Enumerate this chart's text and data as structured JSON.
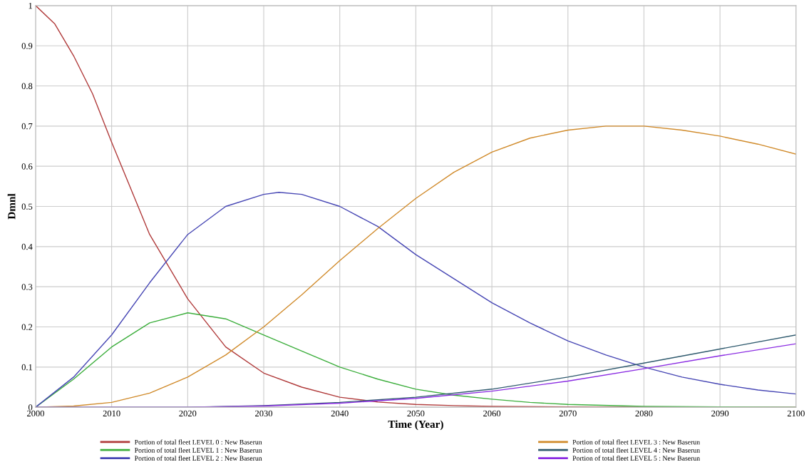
{
  "chart_data": {
    "type": "line",
    "xlabel": "Time (Year)",
    "ylabel": "Dmnl",
    "xlim": [
      2000,
      2100
    ],
    "xticks": [
      2000,
      2010,
      2020,
      2030,
      2040,
      2050,
      2060,
      2070,
      2080,
      2090,
      2100
    ],
    "ylim": [
      0,
      1
    ],
    "yticks": [
      0,
      0.1,
      0.2,
      0.3,
      0.4,
      0.5,
      0.6,
      0.7,
      0.8,
      0.9,
      1
    ],
    "grid": true,
    "legend": "bottom",
    "marker": "none",
    "line_style": "solid",
    "series": [
      {
        "name": "Portion of total fleet LEVEL 0 : New Baserun",
        "color": "#b03a3a",
        "x": [
          2000,
          2002.5,
          2005,
          2007.5,
          2010,
          2015,
          2020,
          2025,
          2030,
          2035,
          2040,
          2045,
          2050,
          2055,
          2060,
          2070,
          2080,
          2100
        ],
        "values": [
          1.0,
          0.955,
          0.875,
          0.78,
          0.66,
          0.43,
          0.27,
          0.15,
          0.085,
          0.05,
          0.025,
          0.013,
          0.007,
          0.004,
          0.002,
          0.001,
          0,
          0
        ]
      },
      {
        "name": "Portion of total fleet LEVEL 1 : New Baserun",
        "color": "#3cae3c",
        "x": [
          2000,
          2005,
          2010,
          2015,
          2020,
          2025,
          2030,
          2035,
          2040,
          2045,
          2050,
          2055,
          2060,
          2065,
          2070,
          2080,
          2090,
          2100
        ],
        "values": [
          0,
          0.07,
          0.15,
          0.21,
          0.235,
          0.22,
          0.18,
          0.14,
          0.1,
          0.07,
          0.045,
          0.03,
          0.02,
          0.012,
          0.007,
          0.002,
          0.001,
          0
        ]
      },
      {
        "name": "Portion of total fleet LEVEL 2 : New Baserun",
        "color": "#4646b4",
        "x": [
          2000,
          2005,
          2010,
          2015,
          2020,
          2025,
          2030,
          2032,
          2035,
          2040,
          2045,
          2050,
          2055,
          2060,
          2065,
          2070,
          2075,
          2080,
          2085,
          2090,
          2095,
          2100
        ],
        "values": [
          0,
          0.075,
          0.18,
          0.31,
          0.43,
          0.5,
          0.53,
          0.535,
          0.53,
          0.5,
          0.45,
          0.38,
          0.32,
          0.26,
          0.21,
          0.165,
          0.13,
          0.1,
          0.075,
          0.057,
          0.043,
          0.033
        ]
      },
      {
        "name": "Portion of total fleet LEVEL 3 : New Baserun",
        "color": "#d08a2a",
        "x": [
          2000,
          2005,
          2010,
          2015,
          2020,
          2025,
          2030,
          2035,
          2040,
          2045,
          2050,
          2055,
          2060,
          2065,
          2070,
          2075,
          2080,
          2085,
          2090,
          2095,
          2100
        ],
        "values": [
          0,
          0.003,
          0.012,
          0.035,
          0.075,
          0.13,
          0.2,
          0.28,
          0.365,
          0.445,
          0.52,
          0.585,
          0.635,
          0.67,
          0.69,
          0.7,
          0.7,
          0.69,
          0.675,
          0.655,
          0.63
        ]
      },
      {
        "name": "Portion of total fleet LEVEL 4 : New Baserun",
        "color": "#2f5a6e",
        "x": [
          2000,
          2020,
          2030,
          2040,
          2050,
          2060,
          2070,
          2080,
          2090,
          2100
        ],
        "values": [
          0,
          0,
          0.004,
          0.012,
          0.025,
          0.045,
          0.075,
          0.11,
          0.145,
          0.18
        ]
      },
      {
        "name": "Portion of total fleet LEVEL 5 : New Baserun",
        "color": "#8a2be2",
        "x": [
          2000,
          2020,
          2030,
          2040,
          2050,
          2060,
          2070,
          2080,
          2090,
          2100
        ],
        "values": [
          0,
          0,
          0.003,
          0.01,
          0.022,
          0.04,
          0.065,
          0.096,
          0.128,
          0.158
        ]
      }
    ]
  }
}
